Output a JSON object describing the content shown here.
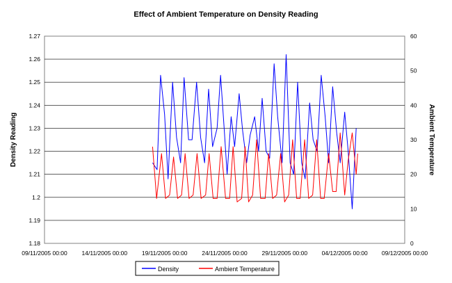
{
  "chart_data": {
    "type": "line",
    "title": "Effect of Ambient Temperature on Density Reading",
    "xlabel": "",
    "ylabel": "Density Reading",
    "y2label": "Ambient Temperature",
    "x_tick_labels": [
      "09/11/2005 00:00",
      "14/11/2005 00:00",
      "19/11/2005 00:00",
      "24/11/2005 00:00",
      "29/11/2005 00:00",
      "04/12/2005 00:00",
      "09/12/2005 00:00"
    ],
    "xlim": [
      "09/11/2005 00:00",
      "09/12/2005 00:00"
    ],
    "ylim": [
      1.18,
      1.27
    ],
    "y_ticks": [
      "1.18",
      "1.19",
      "1.2",
      "1.21",
      "1.22",
      "1.23",
      "1.24",
      "1.25",
      "1.26",
      "1.27"
    ],
    "y2lim": [
      0,
      60
    ],
    "y2_ticks": [
      "0",
      "10",
      "20",
      "30",
      "40",
      "50",
      "60"
    ],
    "grid": "horizontal",
    "legend_position": "bottom",
    "series": [
      {
        "name": "Density",
        "axis": "left",
        "color": "#0000ff",
        "x": [
          "18/11/2005 00:00",
          "18/11/2005 09:00",
          "18/11/2005 16:00",
          "19/11/2005 00:00",
          "19/11/2005 07:00",
          "19/11/2005 16:00",
          "20/11/2005 00:00",
          "20/11/2005 08:00",
          "20/11/2005 15:00",
          "21/11/2005 00:00",
          "21/11/2005 07:00",
          "21/11/2005 16:00",
          "22/11/2005 00:00",
          "22/11/2005 08:00",
          "22/11/2005 16:00",
          "23/11/2005 00:00",
          "23/11/2005 09:00",
          "23/11/2005 16:00",
          "24/11/2005 00:00",
          "24/11/2005 05:00",
          "24/11/2005 13:00",
          "24/11/2005 20:00",
          "25/11/2005 05:00",
          "25/11/2005 12:00",
          "25/11/2005 20:00",
          "26/11/2005 03:00",
          "26/11/2005 12:00",
          "26/11/2005 20:00",
          "27/11/2005 03:00",
          "27/11/2005 11:00",
          "27/11/2005 18:00",
          "28/11/2005 03:00",
          "28/11/2005 10:00",
          "28/11/2005 19:00",
          "29/11/2005 03:00",
          "29/11/2005 11:00",
          "29/11/2005 18:00",
          "30/11/2005 02:00",
          "30/11/2005 10:00",
          "30/11/2005 17:00",
          "01/12/2005 02:00",
          "01/12/2005 09:00",
          "01/12/2005 17:00",
          "02/12/2005 01:00",
          "02/12/2005 09:00",
          "02/12/2005 16:00",
          "03/12/2005 00:00",
          "03/12/2005 08:00",
          "03/12/2005 15:00",
          "04/12/2005 00:00",
          "04/12/2005 07:00",
          "04/12/2005 15:00",
          "04/12/2005 23:00"
        ],
        "values": [
          1.215,
          1.212,
          1.253,
          1.236,
          1.208,
          1.25,
          1.226,
          1.215,
          1.252,
          1.225,
          1.225,
          1.25,
          1.226,
          1.215,
          1.247,
          1.222,
          1.23,
          1.253,
          1.227,
          1.21,
          1.235,
          1.222,
          1.245,
          1.229,
          1.215,
          1.227,
          1.235,
          1.22,
          1.243,
          1.22,
          1.217,
          1.258,
          1.235,
          1.215,
          1.262,
          1.215,
          1.21,
          1.25,
          1.215,
          1.208,
          1.241,
          1.225,
          1.22,
          1.253,
          1.235,
          1.215,
          1.248,
          1.228,
          1.215,
          1.237,
          1.22,
          1.195,
          1.23
        ]
      },
      {
        "name": "Ambient Temperature",
        "axis": "right",
        "color": "#ff0000",
        "x": [
          "18/11/2005 00:00",
          "18/11/2005 08:00",
          "18/11/2005 18:00",
          "19/11/2005 02:00",
          "19/11/2005 10:00",
          "19/11/2005 18:00",
          "20/11/2005 02:00",
          "20/11/2005 10:00",
          "20/11/2005 17:00",
          "21/11/2005 01:00",
          "21/11/2005 09:00",
          "21/11/2005 17:00",
          "22/11/2005 01:00",
          "22/11/2005 10:00",
          "22/11/2005 17:00",
          "23/11/2005 01:00",
          "23/11/2005 09:00",
          "23/11/2005 17:00",
          "24/11/2005 02:00",
          "24/11/2005 10:00",
          "24/11/2005 17:00",
          "25/11/2005 01:00",
          "25/11/2005 10:00",
          "25/11/2005 17:00",
          "26/11/2005 00:00",
          "26/11/2005 08:00",
          "26/11/2005 16:00",
          "27/11/2005 00:00",
          "27/11/2005 09:00",
          "27/11/2005 16:00",
          "28/11/2005 00:00",
          "28/11/2005 08:00",
          "28/11/2005 16:00",
          "29/11/2005 00:00",
          "29/11/2005 08:00",
          "29/11/2005 16:00",
          "30/11/2005 00:00",
          "30/11/2005 07:00",
          "30/11/2005 16:00",
          "01/12/2005 00:00",
          "01/12/2005 08:00",
          "01/12/2005 16:00",
          "02/12/2005 00:00",
          "02/12/2005 07:00",
          "02/12/2005 16:00",
          "03/12/2005 00:00",
          "03/12/2005 07:00",
          "03/12/2005 15:00",
          "04/12/2005 00:00",
          "04/12/2005 07:00",
          "04/12/2005 15:00",
          "04/12/2005 23:00",
          "05/12/2005 02:00"
        ],
        "values": [
          28,
          13,
          26,
          13,
          14,
          25,
          13,
          14,
          26,
          13,
          14,
          26,
          13,
          14,
          26,
          13,
          13,
          28,
          13,
          13,
          28,
          12,
          13,
          28,
          12,
          14,
          30,
          13,
          13,
          26,
          13,
          14,
          26,
          12,
          14,
          30,
          13,
          13,
          30,
          13,
          14,
          30,
          13,
          13,
          26,
          15,
          15,
          32,
          14,
          24,
          32,
          20,
          26
        ]
      }
    ]
  }
}
